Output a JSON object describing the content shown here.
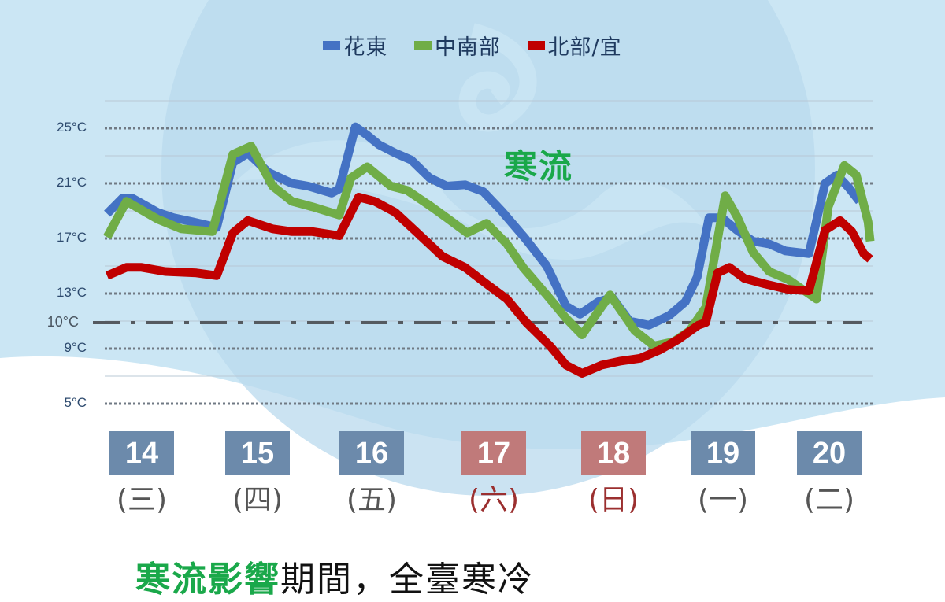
{
  "legend": [
    {
      "label": "花東",
      "color": "#4472c4"
    },
    {
      "label": "中南部",
      "color": "#70ad47"
    },
    {
      "label": "北部/宜",
      "color": "#c00000"
    }
  ],
  "y_axis": {
    "labels": [
      "25°C",
      "21°C",
      "17°C",
      "13°C",
      "10°C",
      "9°C",
      "5°C"
    ]
  },
  "annotation": "寒流",
  "days": [
    {
      "date": "14",
      "weekday": "(三)",
      "weekend": false
    },
    {
      "date": "15",
      "weekday": "(四)",
      "weekend": false
    },
    {
      "date": "16",
      "weekday": "(五)",
      "weekend": false
    },
    {
      "date": "17",
      "weekday": "(六)",
      "weekend": true
    },
    {
      "date": "18",
      "weekday": "(日)",
      "weekend": true
    },
    {
      "date": "19",
      "weekday": "(一)",
      "weekend": false
    },
    {
      "date": "20",
      "weekday": "(二)",
      "weekend": false
    }
  ],
  "caption": {
    "highlight": "寒流影響",
    "rest": "期間，全臺寒冷"
  },
  "colors": {
    "weekday_box": "#6c8aab",
    "weekend_box": "#c07a7a",
    "highlight_green": "#1aa84a",
    "threshold_line": "#555a60"
  },
  "chart_data": {
    "type": "line",
    "title": "",
    "xlabel": "",
    "ylabel": "",
    "ylim": [
      3,
      27
    ],
    "yticks": [
      25,
      21,
      17,
      13,
      10,
      9,
      5
    ],
    "grid": true,
    "legend_position": "top",
    "threshold": {
      "value": 10,
      "label": "10°C",
      "style": "dash-dot"
    },
    "categories": [
      "14(三)",
      "15(四)",
      "16(五)",
      "17(六)",
      "18(日)",
      "19(一)",
      "20(二)"
    ],
    "x_range": [
      0,
      7
    ],
    "series": [
      {
        "name": "花東",
        "color": "#4472c4",
        "x": [
          0.0,
          0.14,
          0.24,
          0.47,
          0.62,
          0.8,
          1.02,
          1.17,
          1.31,
          1.5,
          1.72,
          1.87,
          2.09,
          2.16,
          2.31,
          2.42,
          2.53,
          2.68,
          2.83,
          3.0,
          3.16,
          3.33,
          3.5,
          3.67,
          3.89,
          4.09,
          4.27,
          4.4,
          4.57,
          4.7,
          4.86,
          5.04,
          5.23,
          5.38,
          5.49,
          5.6,
          5.72,
          5.86,
          6.01,
          6.16,
          6.31,
          6.53,
          6.68,
          6.79,
          6.9,
          7.0
        ],
        "values": [
          18.8,
          19.9,
          19.9,
          18.9,
          18.5,
          18.2,
          17.8,
          22.5,
          23.2,
          21.8,
          21.0,
          20.8,
          20.3,
          20.6,
          25.1,
          24.5,
          23.8,
          23.2,
          22.7,
          21.4,
          20.8,
          20.9,
          20.4,
          19.0,
          17.0,
          15.0,
          12.1,
          11.5,
          12.4,
          12.7,
          11.0,
          10.7,
          11.4,
          12.4,
          14.2,
          18.5,
          18.5,
          17.6,
          16.8,
          16.6,
          16.1,
          15.9,
          21.0,
          21.6,
          20.7,
          19.7
        ]
      },
      {
        "name": "中南部",
        "color": "#70ad47",
        "x": [
          0.0,
          0.18,
          0.47,
          0.69,
          0.98,
          1.17,
          1.34,
          1.54,
          1.72,
          1.91,
          2.16,
          2.27,
          2.42,
          2.64,
          2.79,
          3.0,
          3.16,
          3.35,
          3.53,
          3.72,
          3.87,
          4.09,
          4.27,
          4.42,
          4.57,
          4.68,
          4.91,
          5.09,
          5.27,
          5.42,
          5.57,
          5.75,
          5.86,
          6.01,
          6.16,
          6.34,
          6.6,
          6.71,
          6.86,
          6.97,
          7.08,
          7.1
        ],
        "values": [
          17.1,
          19.7,
          18.4,
          17.7,
          17.5,
          23.1,
          23.7,
          20.8,
          19.7,
          19.3,
          18.7,
          21.4,
          22.2,
          20.8,
          20.5,
          19.4,
          18.5,
          17.4,
          18.1,
          16.6,
          14.9,
          12.9,
          11.2,
          10.0,
          11.7,
          12.9,
          10.3,
          9.2,
          9.5,
          10.3,
          12.0,
          20.1,
          18.6,
          16.0,
          14.6,
          14.0,
          12.6,
          19.3,
          22.3,
          21.6,
          18.2,
          16.8
        ]
      },
      {
        "name": "北部/宜",
        "color": "#c00000",
        "x": [
          0.0,
          0.18,
          0.32,
          0.54,
          0.83,
          1.02,
          1.17,
          1.31,
          1.54,
          1.72,
          1.91,
          2.16,
          2.34,
          2.49,
          2.68,
          2.86,
          3.12,
          3.33,
          3.53,
          3.72,
          3.9,
          4.12,
          4.27,
          4.42,
          4.6,
          4.78,
          4.96,
          5.14,
          5.32,
          5.5,
          5.57,
          5.68,
          5.79,
          5.93,
          6.12,
          6.34,
          6.53,
          6.68,
          6.82,
          6.93,
          7.04,
          7.1
        ],
        "values": [
          14.3,
          14.9,
          14.9,
          14.6,
          14.5,
          14.3,
          17.4,
          18.3,
          17.7,
          17.5,
          17.5,
          17.2,
          20.0,
          19.7,
          18.9,
          17.6,
          15.7,
          14.9,
          13.7,
          12.6,
          10.9,
          9.2,
          7.8,
          7.2,
          7.8,
          8.1,
          8.3,
          8.9,
          9.7,
          10.7,
          10.9,
          14.5,
          14.9,
          14.1,
          13.7,
          13.3,
          13.2,
          17.6,
          18.3,
          17.5,
          15.9,
          15.5
        ]
      }
    ]
  }
}
